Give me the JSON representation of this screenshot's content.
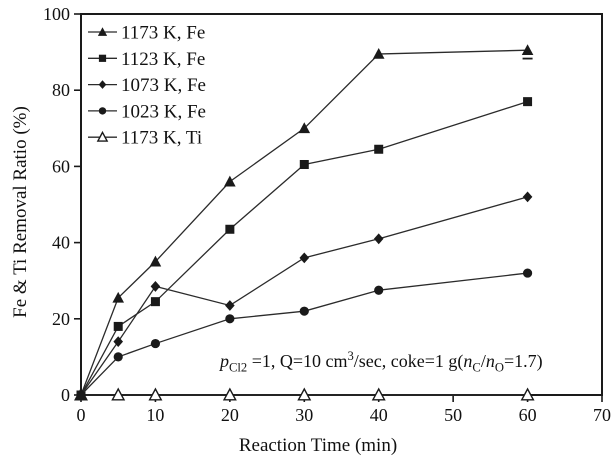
{
  "figure": {
    "background": "#ffffff",
    "ink": "#1a1a1a",
    "line_color": "#2b2b2b"
  },
  "chart_data": {
    "type": "line",
    "title": "",
    "xlabel": "Reaction Time (min)",
    "ylabel": "Fe & Ti Removal Ratio (%)",
    "xlim": [
      0,
      70
    ],
    "ylim": [
      0,
      100
    ],
    "x_ticks": [
      0,
      10,
      20,
      30,
      40,
      50,
      60,
      70
    ],
    "y_ticks": [
      0,
      20,
      40,
      60,
      80,
      100
    ],
    "grid": false,
    "frame": "full-box",
    "legend_position": "top-left-inside",
    "x": [
      0,
      5,
      10,
      20,
      30,
      40,
      60
    ],
    "series": [
      {
        "name": "1173 K, Fe",
        "marker": "triangle-filled",
        "values": [
          0,
          25.5,
          35,
          56,
          70,
          89.5,
          90.5
        ]
      },
      {
        "name": "1123 K, Fe",
        "marker": "square-filled",
        "values": [
          0,
          18,
          24.5,
          43.5,
          60.5,
          64.5,
          77
        ]
      },
      {
        "name": "1073 K, Fe",
        "marker": "diamond-filled",
        "values": [
          0,
          14,
          28.5,
          23.5,
          36,
          41,
          52
        ]
      },
      {
        "name": "1023 K, Fe",
        "marker": "circle-filled",
        "values": [
          0,
          10,
          13.5,
          20,
          22,
          27.5,
          32
        ]
      },
      {
        "name": "1173 K, Ti",
        "marker": "triangle-open",
        "values": [
          0,
          0,
          0,
          0,
          0,
          0,
          0
        ]
      }
    ],
    "extra_marks": [
      {
        "type": "dash",
        "series": "1173 K, Fe",
        "x": 60,
        "y": 88.3
      }
    ],
    "annotation": {
      "text": "pCl2 =1, Q=10 cm3/sec, coke=1 g(nC/nO=1.7)",
      "segments": [
        {
          "t": "p",
          "f": "i"
        },
        {
          "t": "Cl2",
          "f": "sub"
        },
        {
          "t": " =1, Q=10 cm",
          "f": ""
        },
        {
          "t": "3",
          "f": "sup"
        },
        {
          "t": "/sec, coke=1 g(",
          "f": ""
        },
        {
          "t": "n",
          "f": "i"
        },
        {
          "t": "C",
          "f": "sub"
        },
        {
          "t": "/",
          "f": ""
        },
        {
          "t": "n",
          "f": "i"
        },
        {
          "t": "O",
          "f": "sub"
        },
        {
          "t": "=1.7)",
          "f": ""
        }
      ]
    }
  }
}
